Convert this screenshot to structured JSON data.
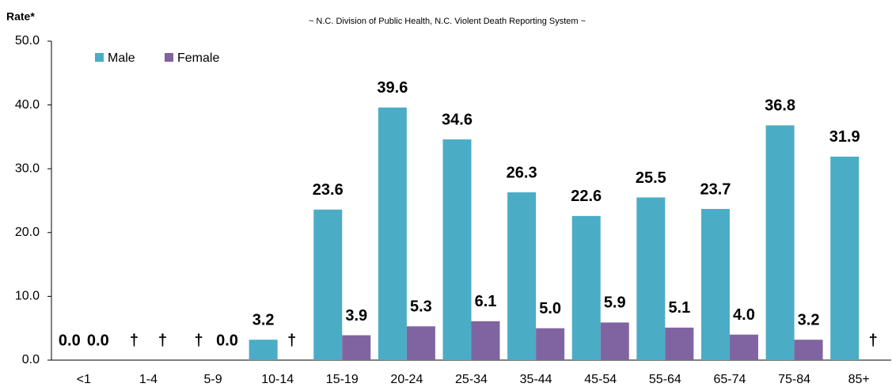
{
  "chart_data": {
    "type": "bar",
    "subtitle": "~ N.C. Division of Public Health, N.C. Violent Death Reporting System ~",
    "y_label": "Rate*",
    "categories": [
      "<1",
      "1-4",
      "5-9",
      "10-14",
      "15-19",
      "20-24",
      "25-34",
      "35-44",
      "45-54",
      "55-64",
      "65-74",
      "75-84",
      "85+"
    ],
    "series": [
      {
        "name": "Male",
        "color": "#4bacc6",
        "values": [
          0,
          null,
          null,
          3.2,
          23.6,
          39.6,
          34.6,
          26.3,
          22.6,
          25.5,
          23.7,
          36.8,
          31.9
        ],
        "value_labels": [
          "0.0",
          "†",
          "†",
          "3.2",
          "23.6",
          "39.6",
          "34.6",
          "26.3",
          "22.6",
          "25.5",
          "23.7",
          "36.8",
          "31.9"
        ]
      },
      {
        "name": "Female",
        "color": "#8064a2",
        "values": [
          0,
          null,
          0,
          null,
          3.9,
          5.3,
          6.1,
          5.0,
          5.9,
          5.1,
          4.0,
          3.2,
          null
        ],
        "value_labels": [
          "0.0",
          "†",
          "0.0",
          "†",
          "3.9",
          "5.3",
          "6.1",
          "5.0",
          "5.9",
          "5.1",
          "4.0",
          "3.2",
          "†"
        ]
      }
    ],
    "ylim": [
      0,
      50
    ],
    "yticks": [
      {
        "value": 0,
        "label": "0.0"
      },
      {
        "value": 10,
        "label": "10.0"
      },
      {
        "value": 20,
        "label": "20.0"
      },
      {
        "value": 30,
        "label": "30.0"
      },
      {
        "value": 40,
        "label": "40.0"
      },
      {
        "value": 50,
        "label": "50.0"
      }
    ],
    "legend": "top-left"
  }
}
